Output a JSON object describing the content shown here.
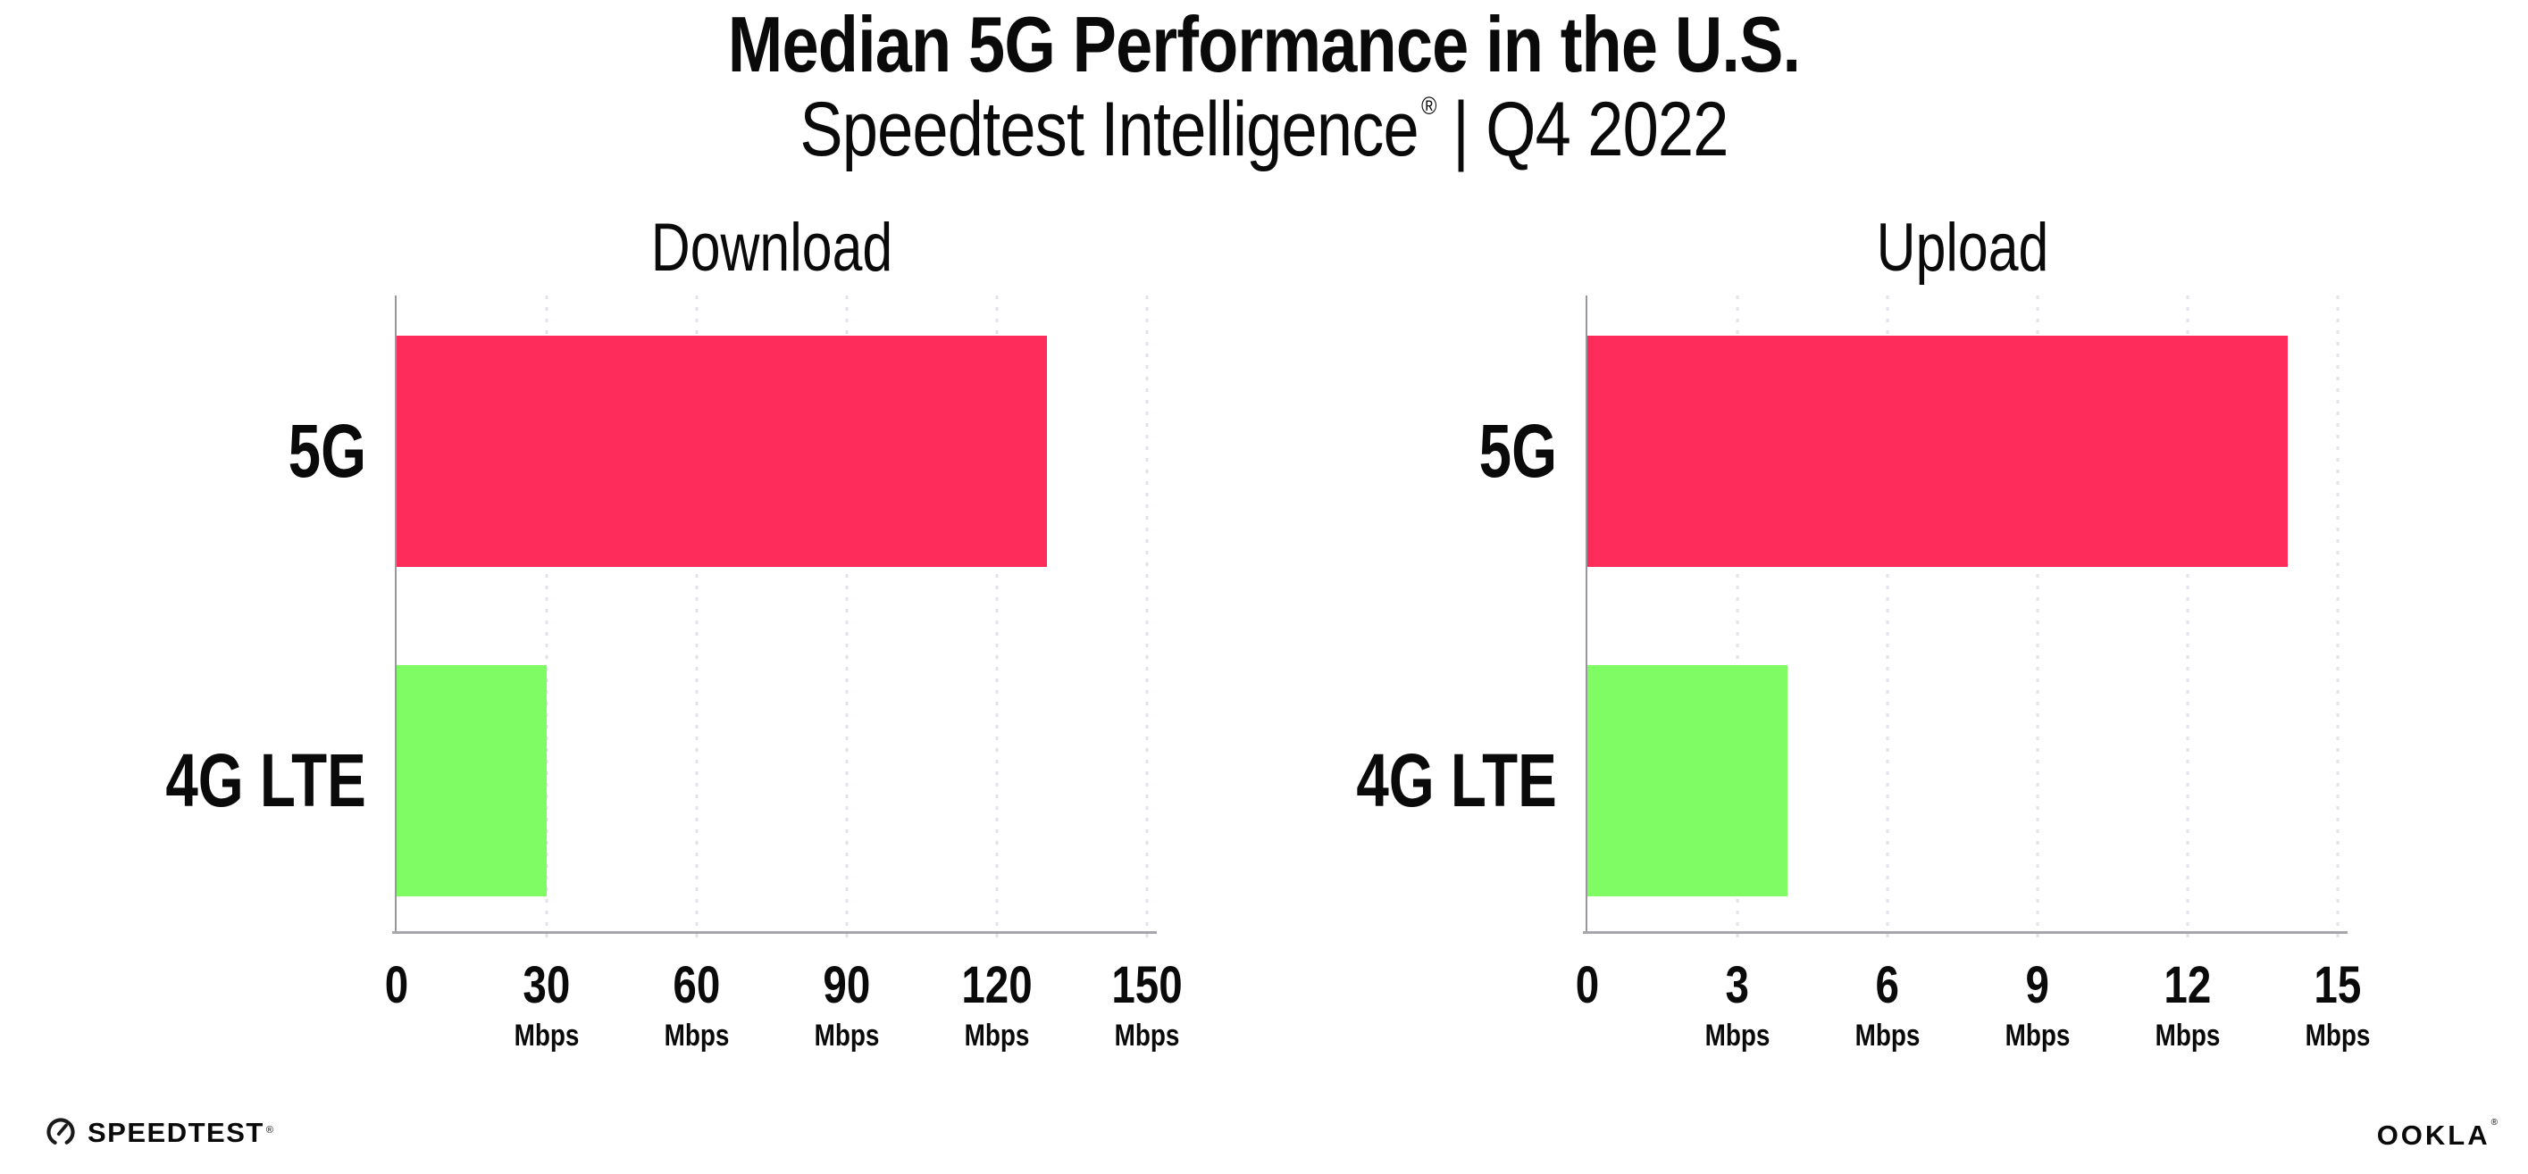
{
  "header": {
    "title": "Median 5G Performance in the U.S.",
    "subtitle": {
      "brand": "Speedtest Intelligence",
      "registered": "®",
      "rest": "| Q4 2022"
    }
  },
  "chart_data": [
    {
      "type": "bar",
      "orientation": "horizontal",
      "title": "Download",
      "categories": [
        "5G",
        "4G LTE"
      ],
      "values": [
        130,
        30
      ],
      "unit": "Mbps",
      "xlim": [
        0,
        150
      ],
      "xticks": [
        0,
        30,
        60,
        90,
        120,
        150
      ],
      "bar_colors": [
        "#FD2C5A",
        "#7FFB64"
      ],
      "grid": "dotted-vertical",
      "legend": "none"
    },
    {
      "type": "bar",
      "orientation": "horizontal",
      "title": "Upload",
      "categories": [
        "5G",
        "4G LTE"
      ],
      "values": [
        14,
        4
      ],
      "unit": "Mbps",
      "xlim": [
        0,
        15
      ],
      "xticks": [
        0,
        3,
        6,
        9,
        12,
        15
      ],
      "bar_colors": [
        "#FD2C5A",
        "#7FFB64"
      ],
      "grid": "dotted-vertical",
      "legend": "none"
    }
  ],
  "footer": {
    "speedtest_label": "SPEEDTEST",
    "speedtest_mark": "®",
    "ookla_label": "OOKLA",
    "ookla_mark": "®"
  },
  "colors": {
    "bar_5g": "#FD2C5A",
    "bar_4g_lte": "#7FFB64",
    "gridline": "#E2E2EC",
    "x_axis": "#A6A6AC",
    "y_axis": "#97979D",
    "text": "#0A0A0A",
    "background": "#FFFFFF"
  }
}
